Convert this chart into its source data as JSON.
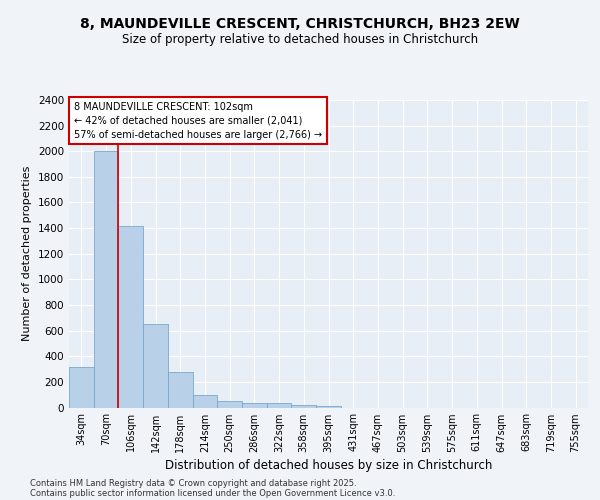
{
  "title1": "8, MAUNDEVILLE CRESCENT, CHRISTCHURCH, BH23 2EW",
  "title2": "Size of property relative to detached houses in Christchurch",
  "xlabel": "Distribution of detached houses by size in Christchurch",
  "ylabel": "Number of detached properties",
  "categories": [
    "34sqm",
    "70sqm",
    "106sqm",
    "142sqm",
    "178sqm",
    "214sqm",
    "250sqm",
    "286sqm",
    "322sqm",
    "358sqm",
    "395sqm",
    "431sqm",
    "467sqm",
    "503sqm",
    "539sqm",
    "575sqm",
    "611sqm",
    "647sqm",
    "683sqm",
    "719sqm",
    "755sqm"
  ],
  "values": [
    320,
    2000,
    1420,
    650,
    280,
    95,
    47,
    38,
    35,
    22,
    8,
    0,
    0,
    0,
    0,
    0,
    0,
    0,
    0,
    0,
    0
  ],
  "bar_color": "#b8d0e8",
  "bar_edge_color": "#7aa8cc",
  "vline_color": "#cc0000",
  "annotation_text": "8 MAUNDEVILLE CRESCENT: 102sqm\n← 42% of detached houses are smaller (2,041)\n57% of semi-detached houses are larger (2,766) →",
  "annotation_box_color": "#cc0000",
  "ylim": [
    0,
    2400
  ],
  "yticks": [
    0,
    200,
    400,
    600,
    800,
    1000,
    1200,
    1400,
    1600,
    1800,
    2000,
    2200,
    2400
  ],
  "background_color": "#f0f4f8",
  "plot_bg_color": "#e8eef5",
  "grid_color": "#ffffff",
  "footer1": "Contains HM Land Registry data © Crown copyright and database right 2025.",
  "footer2": "Contains public sector information licensed under the Open Government Licence v3.0."
}
